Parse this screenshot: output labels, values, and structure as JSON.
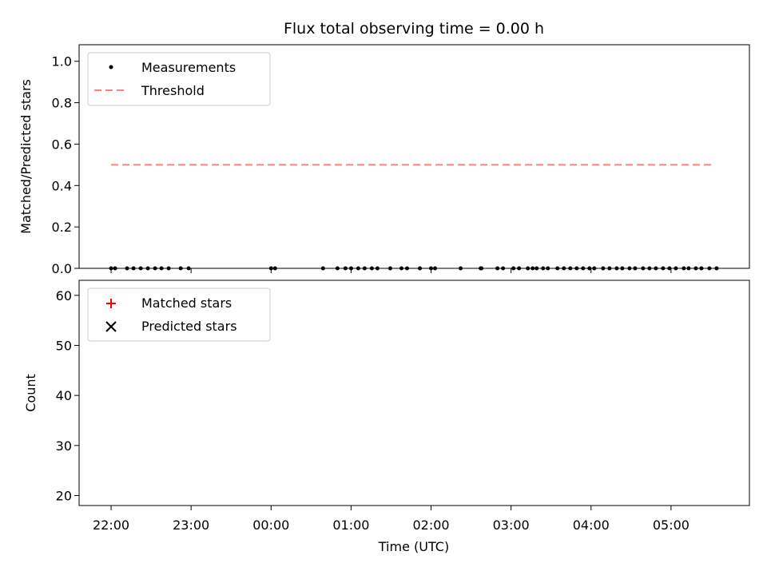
{
  "chart_data": [
    {
      "type": "scatter",
      "title": "Flux total observing time = 0.00 h",
      "xlabel": "",
      "ylabel": "Matched/Predicted stars",
      "ylim": [
        0.0,
        1.08
      ],
      "yticks": [
        "0.0",
        "0.2",
        "0.4",
        "0.6",
        "0.8",
        "1.0"
      ],
      "xlim": [
        -0.4,
        7.98
      ],
      "legend_position": "top-left",
      "series": [
        {
          "name": "Measurements",
          "marker": "dot",
          "color": "#000000",
          "x": [
            0.0,
            0.05,
            0.2,
            0.28,
            0.37,
            0.46,
            0.55,
            0.63,
            0.72,
            0.87,
            0.97,
            2.0,
            2.05,
            2.65,
            2.83,
            2.93,
            3.0,
            3.09,
            3.17,
            3.26,
            3.33,
            3.49,
            3.63,
            3.7,
            3.86,
            4.0,
            4.05,
            4.37,
            4.62,
            4.63,
            4.83,
            4.9,
            5.03,
            5.1,
            5.21,
            5.27,
            5.32,
            5.4,
            5.46,
            5.58,
            5.66,
            5.74,
            5.82,
            5.9,
            5.98,
            6.04,
            6.15,
            6.23,
            6.32,
            6.39,
            6.48,
            6.55,
            6.65,
            6.73,
            6.81,
            6.9,
            6.98,
            7.06,
            7.16,
            7.22,
            7.31,
            7.38,
            7.48,
            7.57
          ],
          "y": [
            0,
            0,
            0,
            0,
            0,
            0,
            0,
            0,
            0,
            0,
            0,
            0,
            0,
            0,
            0,
            0,
            0,
            0,
            0,
            0,
            0,
            0,
            0,
            0,
            0,
            0,
            0,
            0,
            0,
            0,
            0,
            0,
            0,
            0,
            0,
            0,
            0,
            0,
            0,
            0,
            0,
            0,
            0,
            0,
            0,
            0,
            0,
            0,
            0,
            0,
            0,
            0,
            0,
            0,
            0,
            0,
            0,
            0,
            0,
            0,
            0,
            0,
            0,
            0
          ]
        },
        {
          "name": "Threshold",
          "marker": "dashed-line",
          "color": "#ff7f7f",
          "x": [
            0.0,
            7.55
          ],
          "y": [
            0.5,
            0.5
          ]
        }
      ]
    },
    {
      "type": "scatter",
      "title": "",
      "xlabel": "Time (UTC)",
      "ylabel": "Count",
      "ylim": [
        18,
        63
      ],
      "yticks": [
        "20",
        "30",
        "40",
        "50",
        "60"
      ],
      "xlim": [
        -0.4,
        7.98
      ],
      "xticks": [
        "22:00",
        "23:00",
        "00:00",
        "01:00",
        "02:00",
        "03:00",
        "04:00",
        "05:00"
      ],
      "legend_position": "top-left",
      "series": [
        {
          "name": "Matched stars",
          "marker": "plus",
          "color": "#ff0000",
          "x": [],
          "y": []
        },
        {
          "name": "Predicted stars",
          "marker": "x",
          "color": "#000000",
          "x": [],
          "y": []
        }
      ]
    }
  ]
}
